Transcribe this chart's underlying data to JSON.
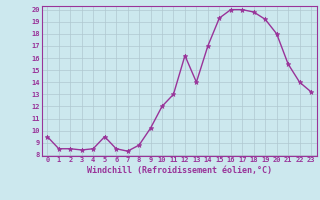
{
  "x": [
    0,
    1,
    2,
    3,
    4,
    5,
    6,
    7,
    8,
    9,
    10,
    11,
    12,
    13,
    14,
    15,
    16,
    17,
    18,
    19,
    20,
    21,
    22,
    23
  ],
  "y": [
    9.5,
    8.5,
    8.5,
    8.4,
    8.5,
    9.5,
    8.5,
    8.3,
    8.8,
    10.2,
    12.0,
    13.0,
    16.2,
    14.0,
    17.0,
    19.3,
    20.0,
    20.0,
    19.8,
    19.2,
    18.0,
    15.5,
    14.0,
    13.2
  ],
  "line_color": "#993399",
  "marker": "*",
  "marker_color": "#993399",
  "bg_color": "#cce8ee",
  "grid_color": "#b0c8d0",
  "xlabel": "Windchill (Refroidissement éolien,°C)",
  "xlabel_color": "#993399",
  "tick_color": "#993399",
  "ylim": [
    8,
    20
  ],
  "xlim": [
    -0.5,
    23.5
  ],
  "yticks": [
    8,
    9,
    10,
    11,
    12,
    13,
    14,
    15,
    16,
    17,
    18,
    19,
    20
  ],
  "xticks": [
    0,
    1,
    2,
    3,
    4,
    5,
    6,
    7,
    8,
    9,
    10,
    11,
    12,
    13,
    14,
    15,
    16,
    17,
    18,
    19,
    20,
    21,
    22,
    23
  ],
  "border_color": "#993399",
  "font_size_ticks": 5.0,
  "font_size_xlabel": 6.0,
  "line_width": 1.0,
  "marker_size": 3.5
}
